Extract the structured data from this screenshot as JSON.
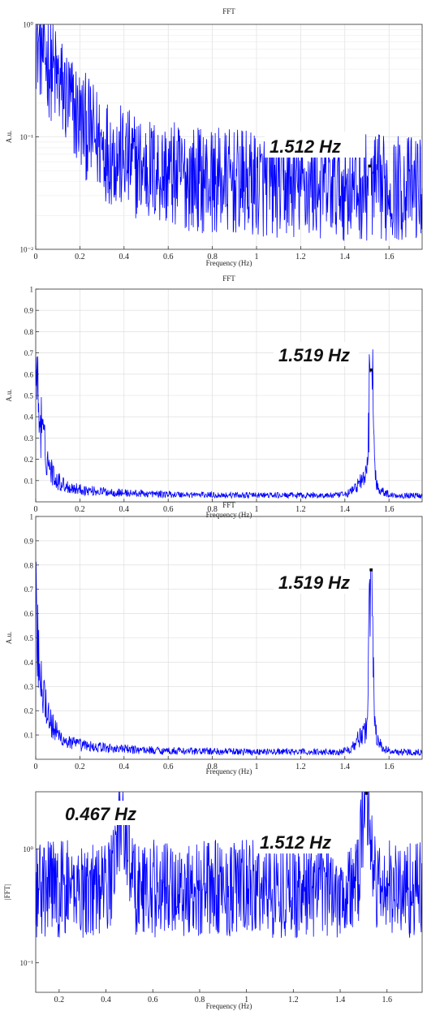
{
  "chart_data": [
    {
      "type": "line",
      "title": "FFT",
      "xlabel": "Frequency (Hz)",
      "ylabel": "A.u.",
      "yscale": "log",
      "xlim": [
        0,
        1.75
      ],
      "ylim": [
        0.01,
        1
      ],
      "xticks": [
        0,
        0.2,
        0.4,
        0.6,
        0.8,
        1,
        1.2,
        1.4,
        1.6
      ],
      "xtick_labels": [
        "0",
        "0.2",
        "0.4",
        "0.6",
        "0.8",
        "1",
        "1.2",
        "1.4",
        "1.6"
      ],
      "yticks": [
        0.01,
        0.1,
        1
      ],
      "ytick_labels": [
        "10⁻²",
        "10⁻¹",
        "10⁰"
      ],
      "grid": true,
      "color": "#0000ff",
      "peak": {
        "x": 1.512,
        "y": 0.055
      },
      "annotation": "1.512 Hz"
    },
    {
      "type": "line",
      "title": "FFT",
      "xlabel": "Frequency (Hz)",
      "ylabel": "A.u.",
      "yscale": "linear",
      "xlim": [
        0,
        1.75
      ],
      "ylim": [
        0,
        1
      ],
      "xticks": [
        0,
        0.2,
        0.4,
        0.6,
        0.8,
        1,
        1.2,
        1.4,
        1.6
      ],
      "xtick_labels": [
        "0",
        "0.2",
        "0.4",
        "0.6",
        "0.8",
        "1",
        "1.2",
        "1.4",
        "1.6"
      ],
      "yticks": [
        0.1,
        0.2,
        0.3,
        0.4,
        0.5,
        0.6,
        0.7,
        0.8,
        0.9,
        1
      ],
      "ytick_labels": [
        "0.1",
        "0.2",
        "0.3",
        "0.4",
        "0.5",
        "0.6",
        "0.7",
        "0.8",
        "0.9",
        "1"
      ],
      "grid": true,
      "color": "#0000ff",
      "peak": {
        "x": 1.519,
        "y": 0.62
      },
      "annotation": "1.519 Hz"
    },
    {
      "type": "line",
      "title": "FFT",
      "xlabel": "Frequency (Hz)",
      "ylabel": "A.u.",
      "yscale": "linear",
      "xlim": [
        0,
        1.75
      ],
      "ylim": [
        0,
        1
      ],
      "xticks": [
        0,
        0.2,
        0.4,
        0.6,
        0.8,
        1,
        1.2,
        1.4,
        1.6
      ],
      "xtick_labels": [
        "0",
        "0.2",
        "0.4",
        "0.6",
        "0.8",
        "1",
        "1.2",
        "1.4",
        "1.6"
      ],
      "yticks": [
        0.1,
        0.2,
        0.3,
        0.4,
        0.5,
        0.6,
        0.7,
        0.8,
        0.9,
        1
      ],
      "ytick_labels": [
        "0.1",
        "0.2",
        "0.3",
        "0.4",
        "0.5",
        "0.6",
        "0.7",
        "0.8",
        "0.9",
        "1"
      ],
      "grid": true,
      "color": "#0000ff",
      "peak": {
        "x": 1.519,
        "y": 0.78
      },
      "annotation": "1.519 Hz"
    },
    {
      "type": "line",
      "title": "",
      "xlabel": "Frequency (Hz)",
      "ylabel": "|FFT|",
      "yscale": "log",
      "xlim": [
        0.1,
        1.75
      ],
      "ylim": [
        0.055,
        3.2
      ],
      "xticks": [
        0.2,
        0.4,
        0.6,
        0.8,
        1,
        1.2,
        1.4,
        1.6
      ],
      "xtick_labels": [
        "0.2",
        "0.4",
        "0.6",
        "0.8",
        "1",
        "1.2",
        "1.4",
        "1.6"
      ],
      "yticks": [
        0.1,
        1
      ],
      "ytick_labels": [
        "10⁻¹",
        "10⁰"
      ],
      "grid": false,
      "color": "#0000ff",
      "peak": {
        "x": 1.512,
        "y": 3.1
      },
      "annotations": [
        {
          "text": "0.467 Hz",
          "x": 0.467,
          "y": 1.9
        },
        {
          "text": "1.512 Hz",
          "x": 1.512,
          "y": 3.1
        }
      ]
    }
  ]
}
